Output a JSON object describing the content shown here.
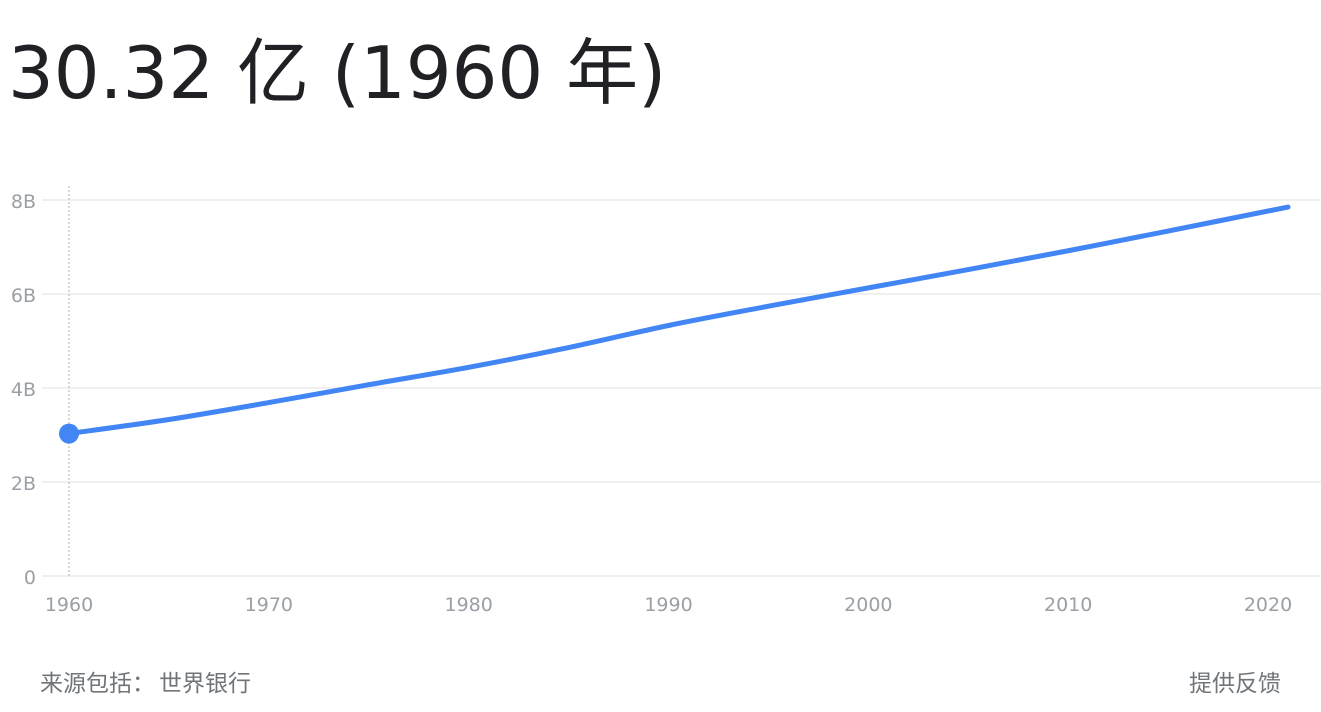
{
  "headline": {
    "value_text": "30.32 亿 (1960 年)"
  },
  "chart_data": {
    "type": "line",
    "x": [
      1960,
      1965,
      1970,
      1975,
      1980,
      1985,
      1990,
      1995,
      2000,
      2005,
      2010,
      2015,
      2021
    ],
    "series": [
      {
        "values": [
          3.03,
          3.33,
          3.69,
          4.07,
          4.44,
          4.86,
          5.33,
          5.74,
          6.13,
          6.52,
          6.92,
          7.34,
          7.85
        ],
        "color": "#4285f4"
      }
    ],
    "y_unit": "billions",
    "ylim": [
      0,
      8
    ],
    "yticks": [
      0,
      2,
      4,
      6,
      8
    ],
    "ytick_labels": [
      "0",
      "2B",
      "4B",
      "6B",
      "8B"
    ],
    "xticks": [
      1960,
      1970,
      1980,
      1990,
      2000,
      2010,
      2020
    ],
    "xtick_labels": [
      "1960",
      "1970",
      "1980",
      "1990",
      "2000",
      "2010",
      "2020"
    ],
    "highlight": {
      "x": 1960,
      "y": 3.03
    },
    "grid": true,
    "colors": {
      "line": "#4285f4",
      "grid": "#ebebeb",
      "tick_text": "#9aa0a6",
      "cursor": "#bdbdbd"
    }
  },
  "footer": {
    "source_label": "来源包括：",
    "source_name": "世界银行",
    "feedback_label": "提供反馈"
  }
}
